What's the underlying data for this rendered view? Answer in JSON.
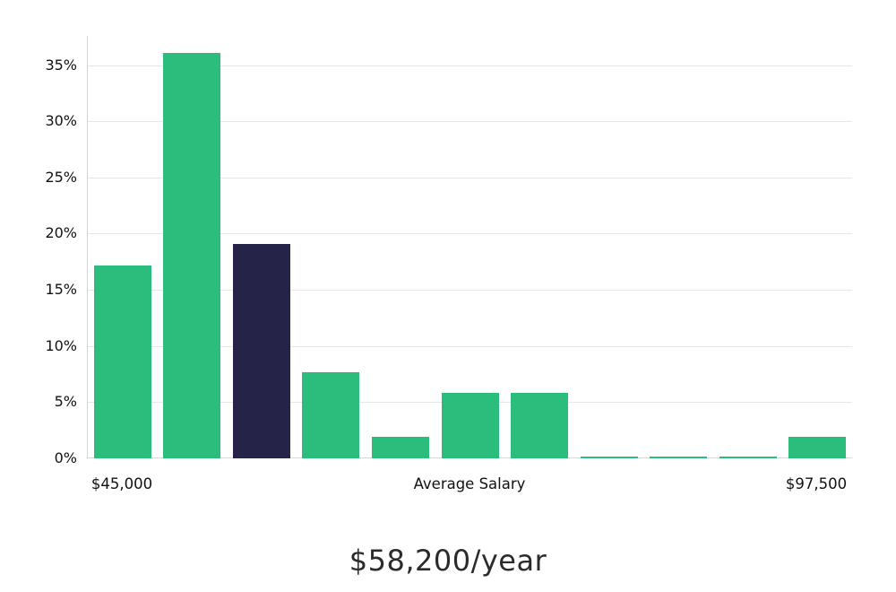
{
  "chart_data": {
    "type": "bar",
    "title": "$58,200/year",
    "xlabel": "Average Salary",
    "ylabel": "",
    "x_labels": {
      "left": "$45,000",
      "center": "Average Salary",
      "right": "$97,500"
    },
    "y_ticks": [
      {
        "value": 0,
        "label": "0%"
      },
      {
        "value": 5,
        "label": "5%"
      },
      {
        "value": 10,
        "label": "10%"
      },
      {
        "value": 15,
        "label": "15%"
      },
      {
        "value": 20,
        "label": "20%"
      },
      {
        "value": 25,
        "label": "25%"
      },
      {
        "value": 30,
        "label": "30%"
      },
      {
        "value": 35,
        "label": "35%"
      }
    ],
    "ylim": [
      0,
      37.6
    ],
    "values": [
      17.2,
      36.1,
      19.1,
      7.7,
      1.9,
      5.8,
      5.8,
      0.15,
      0.15,
      0.15,
      1.9
    ],
    "highlight_index": 2,
    "legend": "none",
    "grid": "horizontal",
    "colors": {
      "bar": "#2abd7c",
      "highlight": "#262349",
      "grid": "#e7e7e7",
      "axis": "#d4d4d4",
      "text": "#121212"
    }
  }
}
